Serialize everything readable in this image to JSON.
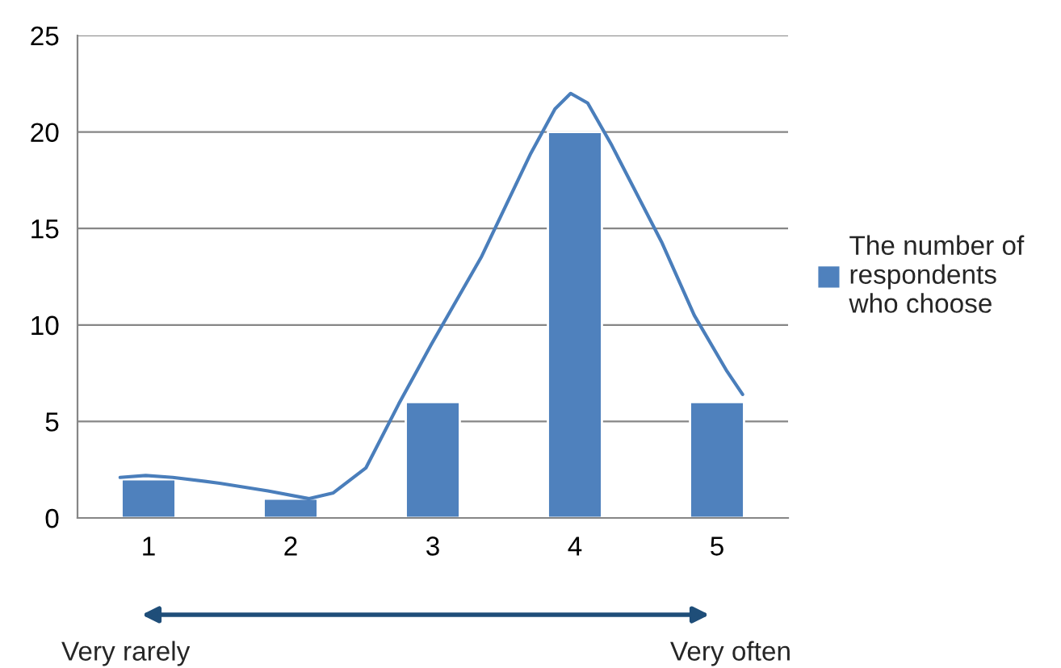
{
  "chart_data": {
    "type": "bar",
    "x": [
      1,
      2,
      3,
      4,
      5
    ],
    "series": [
      {
        "name": "The number of respondents who choose",
        "color": "#4f81bd",
        "values": [
          2,
          1,
          6,
          20,
          6
        ]
      },
      {
        "type": "line",
        "color": "#4a7ebb",
        "x": [
          0.8,
          0.98,
          1.17,
          1.5,
          1.84,
          2.13,
          2.3,
          2.53,
          2.76,
          2.99,
          3.34,
          3.69,
          3.86,
          3.97,
          4.09,
          4.26,
          4.61,
          4.84,
          5.07,
          5.18
        ],
        "values": [
          2.1,
          2.2,
          2.1,
          1.8,
          1.4,
          1.0,
          1.3,
          2.6,
          5.9,
          9.0,
          13.5,
          18.9,
          21.2,
          22.0,
          21.5,
          19.3,
          14.3,
          10.5,
          7.6,
          6.4
        ]
      }
    ],
    "xlim": [
      0.5,
      5.5
    ],
    "xticks": [
      1,
      2,
      3,
      4,
      5
    ],
    "ylim": [
      0,
      25
    ],
    "yticks": [
      0,
      5,
      10,
      15,
      20,
      25
    ],
    "grid": "y",
    "legend": "right",
    "annotations": [
      "Very rarely",
      "Very often"
    ]
  }
}
